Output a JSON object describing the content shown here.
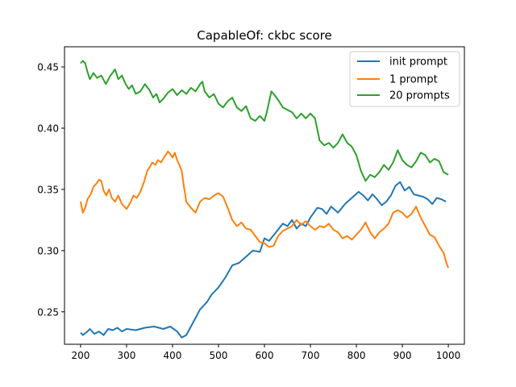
{
  "chart_data": {
    "type": "line",
    "title": "CapableOf: ckbc score",
    "xlabel": "",
    "ylabel": "",
    "xlim": [
      165,
      1035
    ],
    "ylim": [
      0.2235,
      0.4665
    ],
    "x_ticks": [
      200,
      300,
      400,
      500,
      600,
      700,
      800,
      900,
      1000
    ],
    "y_ticks": [
      0.25,
      0.3,
      0.35,
      0.4,
      0.45
    ],
    "y_tick_labels": [
      "0.25",
      "0.30",
      "0.35",
      "0.40",
      "0.45"
    ],
    "grid": false,
    "legend": "top-right",
    "series": [
      {
        "name": "init prompt",
        "color": "#1f77b4",
        "points": [
          [
            200,
            0.233
          ],
          [
            205,
            0.231
          ],
          [
            215,
            0.234
          ],
          [
            220,
            0.236
          ],
          [
            230,
            0.232
          ],
          [
            240,
            0.234
          ],
          [
            250,
            0.231
          ],
          [
            260,
            0.236
          ],
          [
            270,
            0.235
          ],
          [
            280,
            0.237
          ],
          [
            290,
            0.234
          ],
          [
            300,
            0.236
          ],
          [
            320,
            0.235
          ],
          [
            340,
            0.237
          ],
          [
            360,
            0.238
          ],
          [
            380,
            0.236
          ],
          [
            395,
            0.238
          ],
          [
            410,
            0.234
          ],
          [
            420,
            0.229
          ],
          [
            430,
            0.231
          ],
          [
            440,
            0.238
          ],
          [
            450,
            0.245
          ],
          [
            460,
            0.252
          ],
          [
            475,
            0.258
          ],
          [
            485,
            0.264
          ],
          [
            500,
            0.27
          ],
          [
            515,
            0.278
          ],
          [
            530,
            0.288
          ],
          [
            545,
            0.29
          ],
          [
            560,
            0.295
          ],
          [
            575,
            0.3
          ],
          [
            590,
            0.299
          ],
          [
            600,
            0.31
          ],
          [
            610,
            0.308
          ],
          [
            625,
            0.315
          ],
          [
            640,
            0.322
          ],
          [
            650,
            0.32
          ],
          [
            660,
            0.325
          ],
          [
            670,
            0.318
          ],
          [
            680,
            0.322
          ],
          [
            690,
            0.32
          ],
          [
            700,
            0.327
          ],
          [
            715,
            0.335
          ],
          [
            725,
            0.334
          ],
          [
            735,
            0.33
          ],
          [
            745,
            0.336
          ],
          [
            760,
            0.331
          ],
          [
            775,
            0.338
          ],
          [
            790,
            0.343
          ],
          [
            805,
            0.348
          ],
          [
            815,
            0.345
          ],
          [
            825,
            0.341
          ],
          [
            835,
            0.346
          ],
          [
            845,
            0.342
          ],
          [
            855,
            0.337
          ],
          [
            865,
            0.34
          ],
          [
            875,
            0.345
          ],
          [
            885,
            0.353
          ],
          [
            895,
            0.356
          ],
          [
            905,
            0.349
          ],
          [
            915,
            0.352
          ],
          [
            925,
            0.346
          ],
          [
            935,
            0.345
          ],
          [
            945,
            0.344
          ],
          [
            955,
            0.342
          ],
          [
            965,
            0.338
          ],
          [
            975,
            0.343
          ],
          [
            985,
            0.342
          ],
          [
            995,
            0.34
          ]
        ]
      },
      {
        "name": "1 prompt",
        "color": "#ff7f0e",
        "points": [
          [
            200,
            0.34
          ],
          [
            205,
            0.331
          ],
          [
            210,
            0.335
          ],
          [
            215,
            0.342
          ],
          [
            222,
            0.346
          ],
          [
            228,
            0.352
          ],
          [
            235,
            0.355
          ],
          [
            240,
            0.358
          ],
          [
            245,
            0.357
          ],
          [
            250,
            0.349
          ],
          [
            256,
            0.345
          ],
          [
            262,
            0.35
          ],
          [
            268,
            0.343
          ],
          [
            275,
            0.34
          ],
          [
            282,
            0.345
          ],
          [
            290,
            0.338
          ],
          [
            300,
            0.334
          ],
          [
            308,
            0.339
          ],
          [
            315,
            0.345
          ],
          [
            322,
            0.343
          ],
          [
            330,
            0.348
          ],
          [
            338,
            0.356
          ],
          [
            345,
            0.365
          ],
          [
            350,
            0.368
          ],
          [
            356,
            0.372
          ],
          [
            363,
            0.37
          ],
          [
            368,
            0.374
          ],
          [
            375,
            0.372
          ],
          [
            383,
            0.377
          ],
          [
            390,
            0.381
          ],
          [
            395,
            0.379
          ],
          [
            400,
            0.376
          ],
          [
            405,
            0.38
          ],
          [
            410,
            0.374
          ],
          [
            415,
            0.37
          ],
          [
            420,
            0.365
          ],
          [
            425,
            0.352
          ],
          [
            430,
            0.34
          ],
          [
            440,
            0.335
          ],
          [
            450,
            0.331
          ],
          [
            460,
            0.34
          ],
          [
            470,
            0.343
          ],
          [
            480,
            0.342
          ],
          [
            490,
            0.345
          ],
          [
            500,
            0.347
          ],
          [
            510,
            0.344
          ],
          [
            520,
            0.335
          ],
          [
            530,
            0.325
          ],
          [
            540,
            0.32
          ],
          [
            550,
            0.323
          ],
          [
            560,
            0.318
          ],
          [
            570,
            0.317
          ],
          [
            580,
            0.312
          ],
          [
            590,
            0.307
          ],
          [
            600,
            0.306
          ],
          [
            610,
            0.303
          ],
          [
            620,
            0.304
          ],
          [
            630,
            0.312
          ],
          [
            640,
            0.316
          ],
          [
            650,
            0.318
          ],
          [
            660,
            0.32
          ],
          [
            670,
            0.325
          ],
          [
            680,
            0.321
          ],
          [
            690,
            0.324
          ],
          [
            700,
            0.32
          ],
          [
            710,
            0.317
          ],
          [
            720,
            0.32
          ],
          [
            730,
            0.319
          ],
          [
            740,
            0.322
          ],
          [
            750,
            0.317
          ],
          [
            760,
            0.315
          ],
          [
            770,
            0.31
          ],
          [
            780,
            0.312
          ],
          [
            790,
            0.309
          ],
          [
            800,
            0.313
          ],
          [
            810,
            0.317
          ],
          [
            820,
            0.323
          ],
          [
            830,
            0.315
          ],
          [
            840,
            0.31
          ],
          [
            850,
            0.315
          ],
          [
            860,
            0.318
          ],
          [
            870,
            0.322
          ],
          [
            880,
            0.331
          ],
          [
            890,
            0.333
          ],
          [
            900,
            0.331
          ],
          [
            910,
            0.327
          ],
          [
            920,
            0.33
          ],
          [
            930,
            0.336
          ],
          [
            940,
            0.327
          ],
          [
            950,
            0.32
          ],
          [
            960,
            0.313
          ],
          [
            970,
            0.311
          ],
          [
            980,
            0.304
          ],
          [
            990,
            0.298
          ],
          [
            995,
            0.291
          ],
          [
            1000,
            0.286
          ]
        ]
      },
      {
        "name": "20 prompts",
        "color": "#2ca02c",
        "points": [
          [
            200,
            0.453
          ],
          [
            205,
            0.455
          ],
          [
            210,
            0.453
          ],
          [
            215,
            0.446
          ],
          [
            220,
            0.44
          ],
          [
            228,
            0.445
          ],
          [
            236,
            0.441
          ],
          [
            245,
            0.443
          ],
          [
            255,
            0.436
          ],
          [
            265,
            0.443
          ],
          [
            275,
            0.448
          ],
          [
            282,
            0.44
          ],
          [
            290,
            0.443
          ],
          [
            298,
            0.436
          ],
          [
            305,
            0.432
          ],
          [
            312,
            0.435
          ],
          [
            320,
            0.428
          ],
          [
            330,
            0.43
          ],
          [
            340,
            0.436
          ],
          [
            350,
            0.431
          ],
          [
            358,
            0.425
          ],
          [
            365,
            0.428
          ],
          [
            372,
            0.421
          ],
          [
            380,
            0.424
          ],
          [
            390,
            0.429
          ],
          [
            400,
            0.432
          ],
          [
            410,
            0.427
          ],
          [
            420,
            0.431
          ],
          [
            430,
            0.428
          ],
          [
            440,
            0.433
          ],
          [
            450,
            0.43
          ],
          [
            460,
            0.436
          ],
          [
            465,
            0.438
          ],
          [
            470,
            0.43
          ],
          [
            480,
            0.425
          ],
          [
            490,
            0.428
          ],
          [
            500,
            0.42
          ],
          [
            510,
            0.417
          ],
          [
            520,
            0.422
          ],
          [
            530,
            0.425
          ],
          [
            540,
            0.417
          ],
          [
            550,
            0.414
          ],
          [
            560,
            0.418
          ],
          [
            570,
            0.408
          ],
          [
            580,
            0.406
          ],
          [
            590,
            0.41
          ],
          [
            600,
            0.406
          ],
          [
            605,
            0.413
          ],
          [
            615,
            0.43
          ],
          [
            620,
            0.428
          ],
          [
            630,
            0.423
          ],
          [
            640,
            0.417
          ],
          [
            650,
            0.415
          ],
          [
            660,
            0.413
          ],
          [
            670,
            0.408
          ],
          [
            680,
            0.412
          ],
          [
            690,
            0.408
          ],
          [
            700,
            0.412
          ],
          [
            710,
            0.408
          ],
          [
            720,
            0.39
          ],
          [
            730,
            0.386
          ],
          [
            740,
            0.388
          ],
          [
            750,
            0.384
          ],
          [
            760,
            0.388
          ],
          [
            770,
            0.395
          ],
          [
            780,
            0.388
          ],
          [
            790,
            0.385
          ],
          [
            800,
            0.378
          ],
          [
            810,
            0.365
          ],
          [
            820,
            0.357
          ],
          [
            830,
            0.362
          ],
          [
            840,
            0.36
          ],
          [
            850,
            0.364
          ],
          [
            860,
            0.37
          ],
          [
            870,
            0.366
          ],
          [
            880,
            0.372
          ],
          [
            890,
            0.382
          ],
          [
            900,
            0.374
          ],
          [
            910,
            0.37
          ],
          [
            920,
            0.368
          ],
          [
            930,
            0.373
          ],
          [
            940,
            0.38
          ],
          [
            950,
            0.378
          ],
          [
            960,
            0.372
          ],
          [
            970,
            0.375
          ],
          [
            980,
            0.373
          ],
          [
            990,
            0.364
          ],
          [
            1000,
            0.362
          ]
        ]
      }
    ]
  }
}
